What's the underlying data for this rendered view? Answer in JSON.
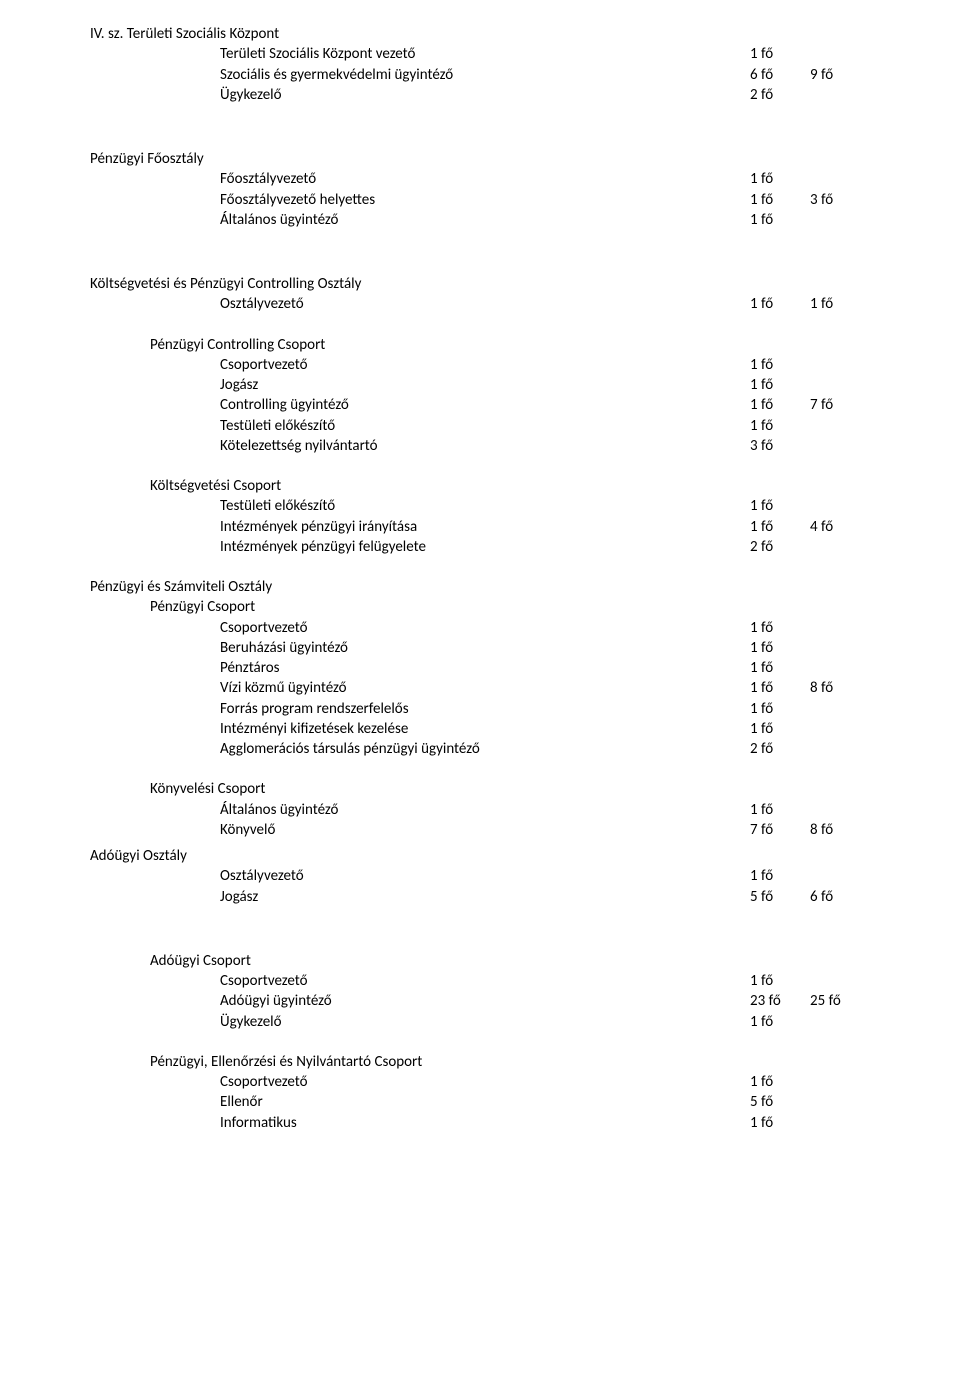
{
  "colors": {
    "text": "#000000",
    "background": "#ffffff"
  },
  "typography": {
    "font_family": "Calibri, Arial, sans-serif",
    "font_size_pt": 11
  },
  "s1": {
    "title": "IV. sz. Területi Szociális Központ",
    "r1": {
      "label": "Területi Szociális Központ vezető",
      "c1": "1 fő",
      "c2": ""
    },
    "r2": {
      "label": "Szociális és gyermekvédelmi ügyintéző",
      "c1": "6 fő",
      "c2": "9 fő"
    },
    "r3": {
      "label": "Ügykezelő",
      "c1": "2 fő",
      "c2": ""
    }
  },
  "s2": {
    "title": "Pénzügyi Főosztály",
    "r1": {
      "label": "Főosztályvezető",
      "c1": "1 fő",
      "c2": ""
    },
    "r2": {
      "label": "Főosztályvezető helyettes",
      "c1": "1 fő",
      "c2": "3 fő"
    },
    "r3": {
      "label": "Általános ügyintéző",
      "c1": "1 fő",
      "c2": ""
    }
  },
  "s3": {
    "title": "Költségvetési és Pénzügyi Controlling Osztály",
    "r1": {
      "label": "Osztályvezető",
      "c1": "1 fő",
      "c2": "1 fő"
    }
  },
  "s4": {
    "title": "Pénzügyi Controlling Csoport",
    "r1": {
      "label": "Csoportvezető",
      "c1": "1 fő",
      "c2": ""
    },
    "r2": {
      "label": "Jogász",
      "c1": "1 fő",
      "c2": ""
    },
    "r3": {
      "label": "Controlling ügyintéző",
      "c1": "1 fő",
      "c2": "7 fő"
    },
    "r4": {
      "label": "Testületi előkészítő",
      "c1": "1 fő",
      "c2": ""
    },
    "r5": {
      "label": "Kötelezettség nyilvántartó",
      "c1": "3 fő",
      "c2": ""
    }
  },
  "s5": {
    "title": "Költségvetési Csoport",
    "r1": {
      "label": "Testületi előkészítő",
      "c1": "1 fő",
      "c2": ""
    },
    "r2": {
      "label": "Intézmények pénzügyi irányítása",
      "c1": "1 fő",
      "c2": "4 fő"
    },
    "r3": {
      "label": "Intézmények pénzügyi felügyelete",
      "c1": "2 fő",
      "c2": ""
    }
  },
  "s6a": {
    "title": "Pénzügyi és Számviteli Osztály"
  },
  "s6": {
    "title": "Pénzügyi Csoport",
    "r1": {
      "label": "Csoportvezető",
      "c1": "1 fő",
      "c2": ""
    },
    "r2": {
      "label": "Beruházási ügyintéző",
      "c1": "1 fő",
      "c2": ""
    },
    "r3": {
      "label": "Pénztáros",
      "c1": "1 fő",
      "c2": ""
    },
    "r4": {
      "label": "Vízi közmű ügyintéző",
      "c1": "1 fő",
      "c2": "8 fő"
    },
    "r5": {
      "label": "Forrás program rendszerfelelős",
      "c1": "1 fő",
      "c2": ""
    },
    "r6": {
      "label": "Intézményi kifizetések kezelése",
      "c1": "1 fő",
      "c2": ""
    },
    "r7": {
      "label": "Agglomerációs társulás pénzügyi ügyintéző",
      "c1": "2 fő",
      "c2": ""
    }
  },
  "s7": {
    "title": "Könyvelési Csoport",
    "r1": {
      "label": "Általános ügyintéző",
      "c1": "1 fő",
      "c2": ""
    },
    "r2": {
      "label": "Könyvelő",
      "c1": "7 fő",
      "c2": "8 fő"
    }
  },
  "s8": {
    "title": "Adóügyi Osztály",
    "r1": {
      "label": "Osztályvezető",
      "c1": "1 fő",
      "c2": ""
    },
    "r2": {
      "label": "Jogász",
      "c1": "5 fő",
      "c2": "6 fő"
    }
  },
  "s9": {
    "title": "Adóügyi Csoport",
    "r1": {
      "label": "Csoportvezető",
      "c1": "1 fő",
      "c2": ""
    },
    "r2": {
      "label": "Adóügyi ügyintéző",
      "c1": "23 fő",
      "c2": "25 fő"
    },
    "r3": {
      "label": "Ügykezelő",
      "c1": "1 fő",
      "c2": ""
    }
  },
  "s10": {
    "title": "Pénzügyi, Ellenőrzési és Nyilvántartó Csoport",
    "r1": {
      "label": "Csoportvezető",
      "c1": "1 fő",
      "c2": ""
    },
    "r2": {
      "label": "Ellenőr",
      "c1": "5 fő",
      "c2": ""
    },
    "r3": {
      "label": "Informatikus",
      "c1": "1 fő",
      "c2": ""
    }
  }
}
